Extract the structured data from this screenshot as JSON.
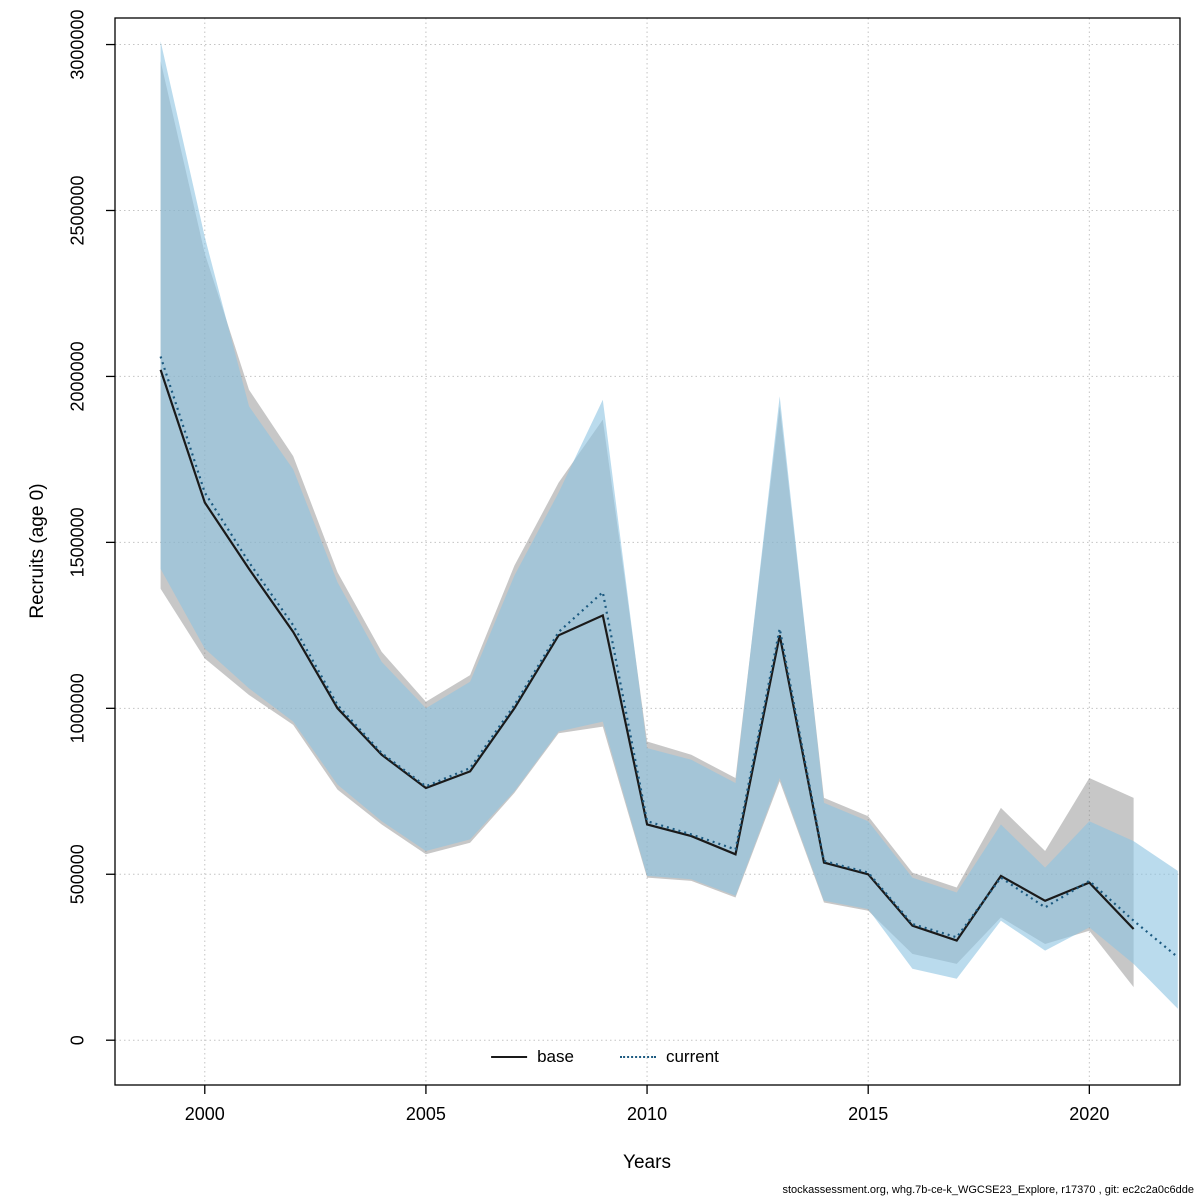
{
  "footer": "stockassessment.org, whg.7b-ce-k_WGCSE23_Explore, r17370 , git: ec2c2a0c6dde",
  "axes": {
    "xlabel": "Years",
    "ylabel": "Recruits (age 0)",
    "x_ticks": [
      2000,
      2005,
      2010,
      2015,
      2020
    ],
    "y_ticks": [
      0,
      500000,
      1000000,
      1500000,
      2000000,
      2500000,
      3000000
    ]
  },
  "legend": {
    "position": "bottom",
    "items": [
      {
        "label": "base",
        "color": "#1a1a1a",
        "style": "solid"
      },
      {
        "label": "current",
        "color": "#1c5a80",
        "style": "dotted"
      }
    ]
  },
  "colors": {
    "background": "#ffffff",
    "grid": "#c4c4c4",
    "axis": "#000000",
    "base_band": "rgba(130,130,130,0.45)",
    "current_band": "rgba(140,195,225,0.60)"
  },
  "chart_data": {
    "type": "line",
    "title": "",
    "xlabel": "Years",
    "ylabel": "Recruits (age 0)",
    "xlim": [
      1997.97,
      2022.05
    ],
    "ylim": [
      -135000,
      3080000
    ],
    "grid": true,
    "legend_position": "bottom",
    "x": [
      1999,
      2000,
      2001,
      2002,
      2003,
      2004,
      2005,
      2006,
      2007,
      2008,
      2009,
      2010,
      2011,
      2012,
      2013,
      2014,
      2015,
      2016,
      2017,
      2018,
      2019,
      2020,
      2021,
      2022
    ],
    "series": [
      {
        "name": "base",
        "color": "#1a1a1a",
        "style": "solid",
        "band_color": "rgba(130,130,130,0.45)",
        "values": [
          2020000,
          1620000,
          1420000,
          1230000,
          1000000,
          860000,
          760000,
          810000,
          1000000,
          1220000,
          1280000,
          650000,
          615000,
          560000,
          1220000,
          535000,
          500000,
          345000,
          300000,
          495000,
          420000,
          475000,
          335000,
          null
        ],
        "band_high": [
          2950000,
          2370000,
          1960000,
          1760000,
          1410000,
          1170000,
          1020000,
          1100000,
          1430000,
          1680000,
          1870000,
          900000,
          860000,
          790000,
          1910000,
          730000,
          675000,
          505000,
          460000,
          700000,
          570000,
          790000,
          730000,
          null
        ],
        "band_low": [
          1360000,
          1150000,
          1040000,
          950000,
          755000,
          650000,
          560000,
          595000,
          745000,
          925000,
          945000,
          490000,
          480000,
          430000,
          780000,
          415000,
          390000,
          260000,
          230000,
          370000,
          290000,
          330000,
          160000,
          null
        ]
      },
      {
        "name": "current",
        "color": "#1c5a80",
        "style": "dotted",
        "band_color": "rgba(140,195,225,0.60)",
        "values": [
          2060000,
          1650000,
          1440000,
          1250000,
          1010000,
          865000,
          765000,
          820000,
          1010000,
          1230000,
          1350000,
          660000,
          620000,
          575000,
          1240000,
          540000,
          505000,
          350000,
          310000,
          490000,
          400000,
          480000,
          360000,
          250000
        ],
        "band_high": [
          3010000,
          2420000,
          1910000,
          1720000,
          1380000,
          1140000,
          1000000,
          1080000,
          1400000,
          1650000,
          1930000,
          880000,
          845000,
          775000,
          1940000,
          715000,
          660000,
          490000,
          445000,
          650000,
          520000,
          660000,
          600000,
          510000
        ],
        "band_low": [
          1420000,
          1180000,
          1060000,
          960000,
          770000,
          660000,
          570000,
          605000,
          750000,
          930000,
          960000,
          495000,
          485000,
          435000,
          790000,
          420000,
          395000,
          215000,
          185000,
          360000,
          270000,
          340000,
          230000,
          95000
        ]
      }
    ]
  }
}
